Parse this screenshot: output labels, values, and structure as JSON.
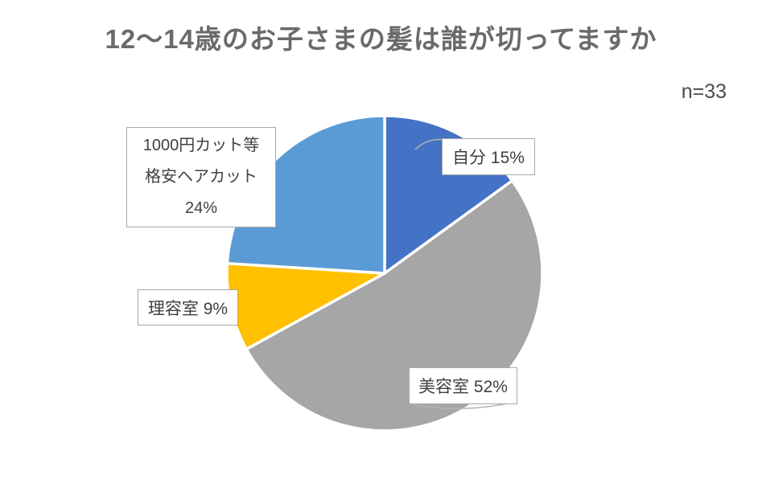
{
  "chart_data": {
    "type": "pie",
    "title": "12～14歳のお子さまの髪は誰が切ってますか",
    "annotation": "n=33",
    "start_angle_deg": 0,
    "direction": "clockwise",
    "legend": "none",
    "label_style": "callout-boxes",
    "slices": [
      {
        "key": "jibun",
        "label": "自分",
        "value_pct": 15,
        "color": "#4472c4",
        "display_label": "自分 15%"
      },
      {
        "key": "biyoushitsu",
        "label": "美容室",
        "value_pct": 52,
        "color": "#a6a6a6",
        "display_label": "美容室 52%"
      },
      {
        "key": "riyoushitsu",
        "label": "理容室",
        "value_pct": 9,
        "color": "#ffc000",
        "display_label": "理容室 9%"
      },
      {
        "key": "cheap-cut",
        "label": "1000円カット等格安ヘアカット",
        "value_pct": 24,
        "color": "#5b9bd5",
        "display_label": "1000円カット等格安ヘアカット 24%",
        "label_lines": [
          "1000円カット等",
          "格安ヘアカット",
          "24%"
        ]
      }
    ],
    "colors": {
      "title_text": "#6a6a6a",
      "label_text": "#404040",
      "label_border": "#a8a8a8",
      "slice_gap": "#ffffff"
    }
  }
}
